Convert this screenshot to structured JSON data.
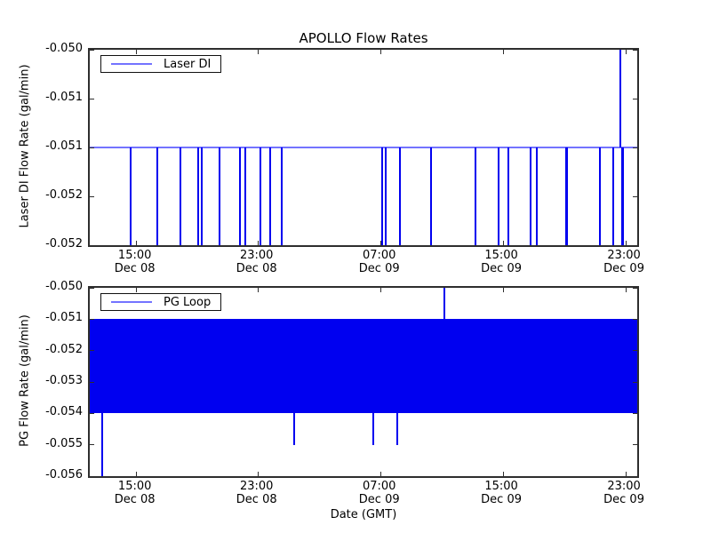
{
  "title": "APOLLO Flow Rates",
  "xlabel": "Date (GMT)",
  "colors": {
    "series_blue": "#0000f0",
    "axis": "#2e2e2e",
    "background": "#ffffff",
    "text": "#000000"
  },
  "chart_data": [
    {
      "type": "line",
      "series_name": "Laser DI",
      "legend_label": "Laser DI",
      "legend_position": "upper left",
      "ylabel": "Laser DI Flow Rate (gal/min)",
      "ylim": [
        -0.052,
        -0.05
      ],
      "grid": false,
      "yticks": [
        {
          "value": -0.05,
          "label": "-0.050"
        },
        {
          "value": -0.0505,
          "label": "-0.051"
        },
        {
          "value": -0.051,
          "label": "-0.051"
        },
        {
          "value": -0.0515,
          "label": "-0.052"
        },
        {
          "value": -0.052,
          "label": "-0.052"
        }
      ],
      "xticks": [
        {
          "frac": 0.0855,
          "line1": "15:00",
          "line2": "Dec 08"
        },
        {
          "frac": 0.308,
          "line1": "23:00",
          "line2": "Dec 08"
        },
        {
          "frac": 0.532,
          "line1": "07:00",
          "line2": "Dec 09"
        },
        {
          "frac": 0.755,
          "line1": "15:00",
          "line2": "Dec 09"
        },
        {
          "frac": 0.979,
          "line1": "23:00",
          "line2": "Dec 09"
        }
      ],
      "baseline_value": -0.051,
      "spikes": [
        {
          "frac": 0.074,
          "from": -0.051,
          "to": -0.052,
          "w": 2
        },
        {
          "frac": 0.124,
          "from": -0.051,
          "to": -0.052,
          "w": 2
        },
        {
          "frac": 0.165,
          "from": -0.051,
          "to": -0.052,
          "w": 2
        },
        {
          "frac": 0.198,
          "from": -0.051,
          "to": -0.052,
          "w": 2
        },
        {
          "frac": 0.205,
          "from": -0.051,
          "to": -0.052,
          "w": 2
        },
        {
          "frac": 0.237,
          "from": -0.051,
          "to": -0.052,
          "w": 2
        },
        {
          "frac": 0.274,
          "from": -0.051,
          "to": -0.052,
          "w": 2
        },
        {
          "frac": 0.284,
          "from": -0.051,
          "to": -0.052,
          "w": 2
        },
        {
          "frac": 0.311,
          "from": -0.051,
          "to": -0.052,
          "w": 2
        },
        {
          "frac": 0.329,
          "from": -0.051,
          "to": -0.052,
          "w": 2
        },
        {
          "frac": 0.35,
          "from": -0.051,
          "to": -0.052,
          "w": 2
        },
        {
          "frac": 0.534,
          "from": -0.051,
          "to": -0.052,
          "w": 2
        },
        {
          "frac": 0.54,
          "from": -0.051,
          "to": -0.052,
          "w": 2
        },
        {
          "frac": 0.566,
          "from": -0.051,
          "to": -0.052,
          "w": 2
        },
        {
          "frac": 0.623,
          "from": -0.051,
          "to": -0.052,
          "w": 2
        },
        {
          "frac": 0.705,
          "from": -0.051,
          "to": -0.052,
          "w": 2
        },
        {
          "frac": 0.747,
          "from": -0.051,
          "to": -0.052,
          "w": 2
        },
        {
          "frac": 0.765,
          "from": -0.051,
          "to": -0.052,
          "w": 2
        },
        {
          "frac": 0.805,
          "from": -0.051,
          "to": -0.052,
          "w": 2
        },
        {
          "frac": 0.816,
          "from": -0.051,
          "to": -0.052,
          "w": 2
        },
        {
          "frac": 0.871,
          "from": -0.051,
          "to": -0.052,
          "w": 3
        },
        {
          "frac": 0.932,
          "from": -0.051,
          "to": -0.052,
          "w": 2
        },
        {
          "frac": 0.956,
          "from": -0.051,
          "to": -0.052,
          "w": 2
        },
        {
          "frac": 0.969,
          "from": -0.051,
          "to": -0.05,
          "w": 2
        },
        {
          "frac": 0.973,
          "from": -0.051,
          "to": -0.052,
          "w": 3
        }
      ]
    },
    {
      "type": "line",
      "series_name": "PG Loop",
      "legend_label": "PG Loop",
      "legend_position": "upper left",
      "ylabel": "PG Flow Rate (gal/min)",
      "ylim": [
        -0.056,
        -0.05
      ],
      "grid": false,
      "yticks": [
        {
          "value": -0.05,
          "label": "-0.050"
        },
        {
          "value": -0.051,
          "label": "-0.051"
        },
        {
          "value": -0.052,
          "label": "-0.052"
        },
        {
          "value": -0.053,
          "label": "-0.053"
        },
        {
          "value": -0.054,
          "label": "-0.054"
        },
        {
          "value": -0.055,
          "label": "-0.055"
        },
        {
          "value": -0.056,
          "label": "-0.056"
        }
      ],
      "xticks": [
        {
          "frac": 0.0855,
          "line1": "15:00",
          "line2": "Dec 08"
        },
        {
          "frac": 0.308,
          "line1": "23:00",
          "line2": "Dec 08"
        },
        {
          "frac": 0.532,
          "line1": "07:00",
          "line2": "Dec 09"
        },
        {
          "frac": 0.755,
          "line1": "15:00",
          "line2": "Dec 09"
        },
        {
          "frac": 0.979,
          "line1": "23:00",
          "line2": "Dec 09"
        }
      ],
      "band": {
        "top": -0.051,
        "bottom": -0.054
      },
      "spikes": [
        {
          "frac": 0.022,
          "from": -0.054,
          "to": -0.056,
          "w": 2
        },
        {
          "frac": 0.373,
          "from": -0.054,
          "to": -0.055,
          "w": 2
        },
        {
          "frac": 0.518,
          "from": -0.054,
          "to": -0.055,
          "w": 2
        },
        {
          "frac": 0.561,
          "from": -0.054,
          "to": -0.055,
          "w": 2
        },
        {
          "frac": 0.647,
          "from": -0.051,
          "to": -0.05,
          "w": 2
        }
      ]
    }
  ]
}
